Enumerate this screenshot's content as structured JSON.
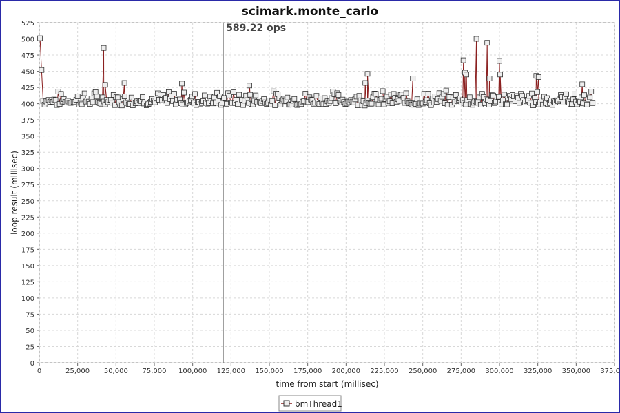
{
  "chart_data": {
    "type": "line",
    "title": "scimark.monte_carlo",
    "xlabel": "time from start (millisec)",
    "ylabel": "loop result (millisec)",
    "xlim": [
      0,
      375000
    ],
    "ylim": [
      0,
      525
    ],
    "x_ticks": [
      "0",
      "25,000",
      "50,000",
      "75,000",
      "100,000",
      "125,000",
      "150,000",
      "175,000",
      "200,000",
      "225,000",
      "250,000",
      "275,000",
      "300,000",
      "325,000",
      "350,000",
      "375,000"
    ],
    "y_ticks": [
      "0",
      "25",
      "50",
      "75",
      "100",
      "125",
      "150",
      "175",
      "200",
      "225",
      "250",
      "275",
      "300",
      "325",
      "350",
      "375",
      "400",
      "425",
      "450",
      "475",
      "500",
      "525"
    ],
    "grid": true,
    "legend_position": "bottom",
    "marker": {
      "x": 120000,
      "label": "589.22 ops"
    },
    "series": [
      {
        "name": "bmThread1",
        "color": "#8b2020",
        "marker_fill": "#eeeeee",
        "x_start": 0,
        "x_end": 361000,
        "baseline_range": [
          397,
          418
        ],
        "spikes": [
          {
            "x": 500,
            "y": 501
          },
          {
            "x": 1500,
            "y": 452
          },
          {
            "x": 42000,
            "y": 486
          },
          {
            "x": 43000,
            "y": 429
          },
          {
            "x": 55500,
            "y": 432
          },
          {
            "x": 93000,
            "y": 431
          },
          {
            "x": 137000,
            "y": 428
          },
          {
            "x": 212500,
            "y": 432
          },
          {
            "x": 214000,
            "y": 446
          },
          {
            "x": 243500,
            "y": 439
          },
          {
            "x": 276500,
            "y": 467
          },
          {
            "x": 277500,
            "y": 448
          },
          {
            "x": 278500,
            "y": 445
          },
          {
            "x": 285000,
            "y": 500
          },
          {
            "x": 292000,
            "y": 494
          },
          {
            "x": 293500,
            "y": 439
          },
          {
            "x": 300000,
            "y": 466
          },
          {
            "x": 300500,
            "y": 445
          },
          {
            "x": 324000,
            "y": 443
          },
          {
            "x": 325500,
            "y": 441
          },
          {
            "x": 354000,
            "y": 430
          }
        ]
      }
    ]
  }
}
